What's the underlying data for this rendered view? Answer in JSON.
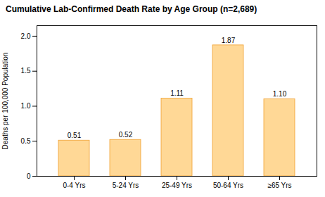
{
  "chart_data": {
    "type": "bar",
    "title": "Cumulative Lab-Confirmed Death Rate by Age Group (n=2,689)",
    "categories": [
      "0-4 Yrs",
      "5-24 Yrs",
      "25-49 Yrs",
      "50-64 Yrs",
      "≥65 Yrs"
    ],
    "values": [
      0.51,
      0.52,
      1.11,
      1.87,
      1.1
    ],
    "value_labels": [
      "0.51",
      "0.52",
      "1.11",
      "1.87",
      "1.10"
    ],
    "data_labels": true,
    "color": "#FFD896",
    "ylabel": "Deaths per 100,000 Population",
    "ylim": [
      0,
      2.15
    ],
    "yticks": [
      0,
      0.5,
      {
        "value": 1.0,
        "label": "1.0"
      },
      1.5,
      {
        "value": 2.0,
        "label": "2.0"
      }
    ],
    "grid": false
  }
}
